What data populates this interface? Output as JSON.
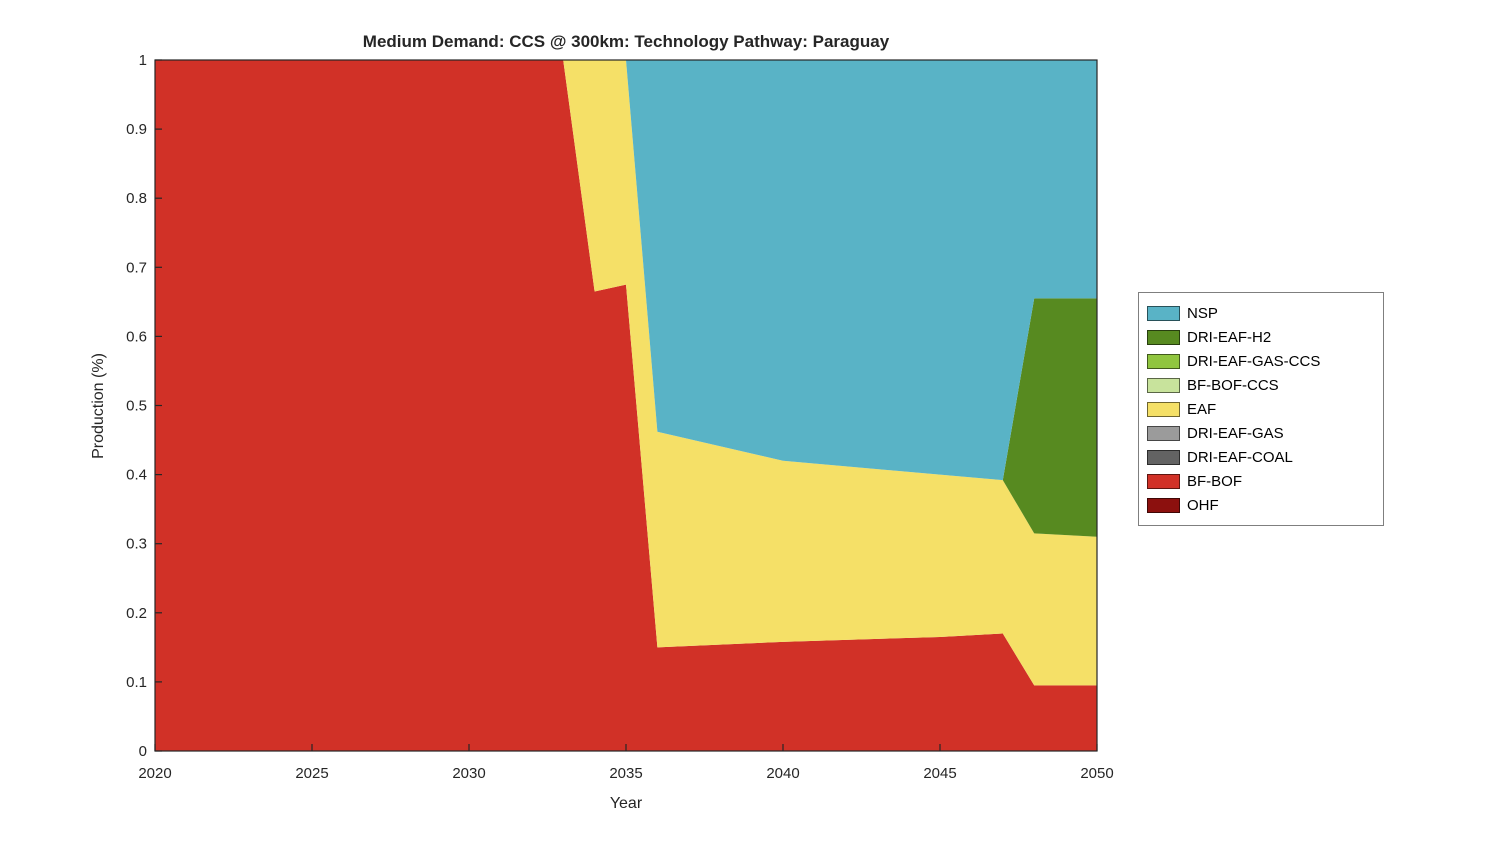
{
  "title": "Medium Demand: CCS @ 300km: Technology Pathway: Paraguay",
  "chart_data": {
    "type": "area",
    "stacked": true,
    "title": "Medium Demand: CCS @ 300km: Technology Pathway: Paraguay",
    "xlabel": "Year",
    "ylabel": "Production (%)",
    "xlim": [
      2020,
      2050
    ],
    "ylim": [
      0,
      1
    ],
    "grid": false,
    "x": [
      2020,
      2033,
      2034,
      2035,
      2036,
      2040,
      2045,
      2047,
      2048,
      2050
    ],
    "xticks": [
      2020,
      2025,
      2030,
      2035,
      2040,
      2045,
      2050
    ],
    "xtick_labels": [
      "2020",
      "2025",
      "2030",
      "2035",
      "2040",
      "2045",
      "2050"
    ],
    "yticks": [
      0,
      0.1,
      0.2,
      0.3,
      0.4,
      0.5,
      0.6,
      0.7,
      0.8,
      0.9,
      1
    ],
    "ytick_labels": [
      "0",
      "0.1",
      "0.2",
      "0.3",
      "0.4",
      "0.5",
      "0.6",
      "0.7",
      "0.8",
      "0.9",
      "1"
    ],
    "series": [
      {
        "name": "OHF",
        "color": "#8c100e",
        "values": [
          0,
          0,
          0,
          0,
          0,
          0,
          0,
          0,
          0,
          0
        ]
      },
      {
        "name": "BF-BOF",
        "color": "#d13127",
        "values": [
          1,
          1,
          0.665,
          0.675,
          0.15,
          0.158,
          0.165,
          0.17,
          0.095,
          0.095
        ]
      },
      {
        "name": "DRI-EAF-COAL",
        "color": "#636363",
        "values": [
          0,
          0,
          0,
          0,
          0,
          0,
          0,
          0,
          0,
          0
        ]
      },
      {
        "name": "DRI-EAF-GAS",
        "color": "#9b9b9b",
        "values": [
          0,
          0,
          0,
          0,
          0,
          0,
          0,
          0,
          0,
          0
        ]
      },
      {
        "name": "EAF",
        "color": "#f5e067",
        "values": [
          0,
          0,
          0.335,
          0.325,
          0.312,
          0.262,
          0.235,
          0.222,
          0.22,
          0.215
        ]
      },
      {
        "name": "BF-BOF-CCS",
        "color": "#c8e39c",
        "values": [
          0,
          0,
          0,
          0,
          0,
          0,
          0,
          0,
          0,
          0
        ]
      },
      {
        "name": "DRI-EAF-GAS-CCS",
        "color": "#90c53f",
        "values": [
          0,
          0,
          0,
          0,
          0,
          0,
          0,
          0,
          0,
          0
        ]
      },
      {
        "name": "DRI-EAF-H2",
        "color": "#578a20",
        "values": [
          0,
          0,
          0,
          0,
          0,
          0,
          0,
          0,
          0.34,
          0.345
        ]
      },
      {
        "name": "NSP",
        "color": "#59b3c6",
        "values": [
          0,
          0,
          0,
          0,
          0.538,
          0.58,
          0.6,
          0.608,
          0.345,
          0.345
        ]
      }
    ],
    "legend": {
      "position": "right-outside",
      "order": [
        "NSP",
        "DRI-EAF-H2",
        "DRI-EAF-GAS-CCS",
        "BF-BOF-CCS",
        "EAF",
        "DRI-EAF-GAS",
        "DRI-EAF-COAL",
        "BF-BOF",
        "OHF"
      ]
    },
    "axis_color": "#262626"
  }
}
